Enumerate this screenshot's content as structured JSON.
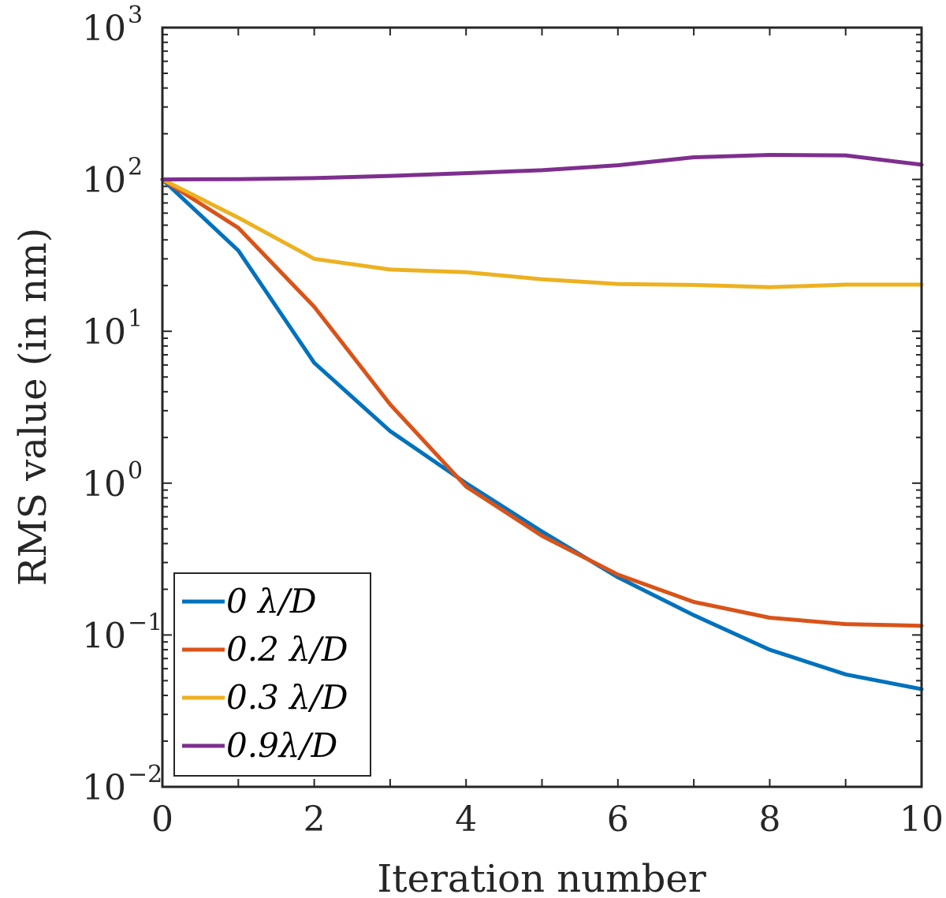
{
  "chart_data": {
    "type": "line",
    "title": "",
    "xlabel": "Iteration number",
    "ylabel": "RMS value (in nm)",
    "xlim": [
      0,
      10
    ],
    "ylim": [
      0.01,
      1000
    ],
    "yscale": "log",
    "x_ticks": [
      "0",
      "2",
      "4",
      "6",
      "8",
      "10"
    ],
    "y_ticks": [
      {
        "base": "10",
        "exp": "3"
      },
      {
        "base": "10",
        "exp": "2"
      },
      {
        "base": "10",
        "exp": "1"
      },
      {
        "base": "10",
        "exp": "0"
      },
      {
        "base": "10",
        "exp": "−1"
      },
      {
        "base": "10",
        "exp": "−2"
      }
    ],
    "legend_position": "bottom-left",
    "x": [
      0,
      1,
      2,
      3,
      4,
      5,
      6,
      7,
      8,
      9,
      10
    ],
    "series": [
      {
        "name": "0 λ/D",
        "color": "#0072BD",
        "values": [
          100,
          34,
          6.2,
          2.2,
          1.0,
          0.48,
          0.24,
          0.135,
          0.08,
          0.055,
          0.044
        ]
      },
      {
        "name": "0.2 λ/D",
        "color": "#D95319",
        "values": [
          100,
          48,
          14.5,
          3.3,
          0.95,
          0.45,
          0.25,
          0.165,
          0.13,
          0.118,
          0.115
        ]
      },
      {
        "name": "0.3 λ/D",
        "color": "#EDB120",
        "values": [
          100,
          56,
          30,
          25.5,
          24.5,
          22,
          20.5,
          20.2,
          19.5,
          20.3,
          20.3
        ]
      },
      {
        "name": "0.9λ/D",
        "color": "#7E2F8E",
        "values": [
          100,
          100.5,
          102,
          105.5,
          110,
          115,
          124,
          140,
          145,
          144,
          125
        ]
      }
    ]
  }
}
